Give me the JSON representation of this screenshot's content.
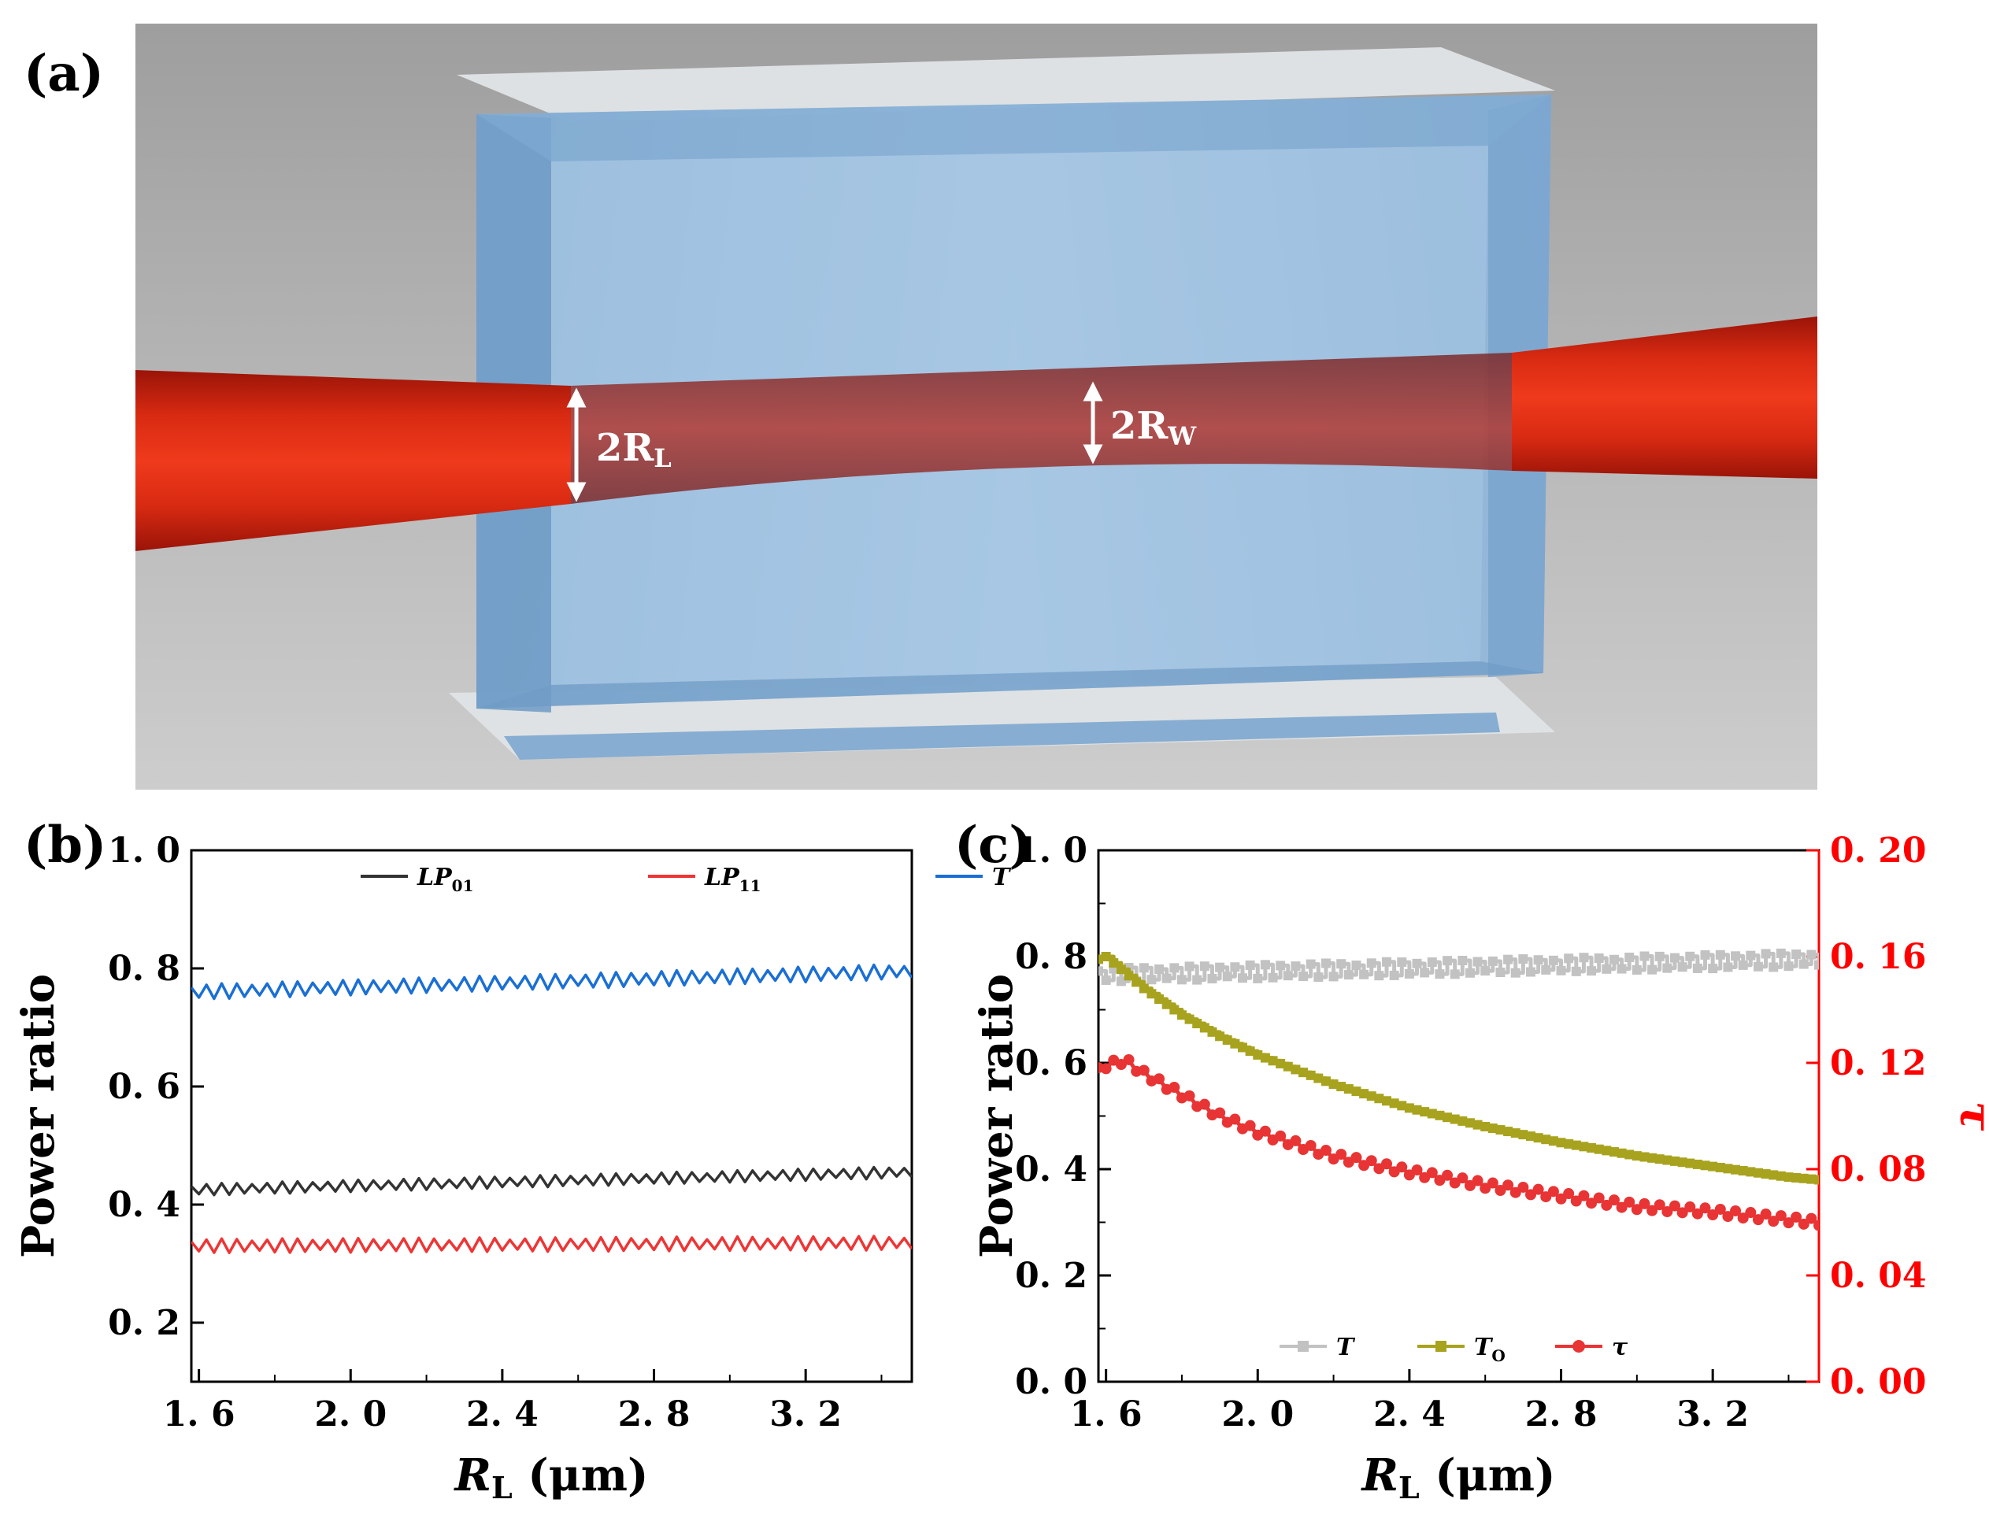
{
  "panel_a": {
    "label": "(a)",
    "dim_left": {
      "main": "2R",
      "sub": "L"
    },
    "dim_waist": {
      "main": "2R",
      "sub": "W"
    }
  },
  "colors": {
    "black": "#333333",
    "red": "#ee3535",
    "blue": "#1a6fd4",
    "gray": "#c2c2c2",
    "olive": "#a8a31e",
    "tau_red": "#e83434",
    "axis_red": "#ff0000"
  },
  "chart_data": [
    {
      "id": "b",
      "panel_label": "(b)",
      "type": "line",
      "xlabel": {
        "main": "R",
        "sub": "L",
        "unit": " (μm)"
      },
      "ylabel": "Power ratio",
      "xlim": [
        1.58,
        3.48
      ],
      "ylim": [
        0.1,
        1.0
      ],
      "x_ticks": [
        1.6,
        2.0,
        2.4,
        2.8,
        3.2
      ],
      "x_tick_labels": [
        "1. 6",
        "2. 0",
        "2. 4",
        "2. 8",
        "3. 2"
      ],
      "y_ticks": [
        0.2,
        0.4,
        0.6,
        0.8,
        1.0
      ],
      "y_tick_labels": [
        "0. 2",
        "0. 4",
        "0. 6",
        "0. 8",
        "1. 0"
      ],
      "legend": [
        {
          "main": "LP",
          "sub": "01",
          "color": "#333333"
        },
        {
          "main": "LP",
          "sub": "11",
          "color": "#ee3535"
        },
        {
          "main": "T",
          "sub": "",
          "color": "#1a6fd4"
        }
      ],
      "series": [
        {
          "name": "LP01",
          "color": "#333333",
          "x_start": 1.58,
          "x_end": 3.48,
          "step": 0.02,
          "base_start": 0.425,
          "base_end": 0.455,
          "ripple": 0.01
        },
        {
          "name": "LP11",
          "color": "#ee3535",
          "x_start": 1.58,
          "x_end": 3.48,
          "step": 0.02,
          "base_start": 0.33,
          "base_end": 0.335,
          "ripple": 0.012
        },
        {
          "name": "T",
          "color": "#1a6fd4",
          "x_start": 1.58,
          "x_end": 3.48,
          "step": 0.02,
          "base_start": 0.76,
          "base_end": 0.795,
          "ripple": 0.013
        }
      ]
    },
    {
      "id": "c",
      "panel_label": "(c)",
      "type": "line",
      "xlabel": {
        "main": "R",
        "sub": "L",
        "unit": " (μm)"
      },
      "ylabel": "Power ratio",
      "y2label": "τ",
      "xlim": [
        1.58,
        3.48
      ],
      "ylim": [
        0.0,
        1.0
      ],
      "y2lim": [
        0.0,
        0.2
      ],
      "x_ticks": [
        1.6,
        2.0,
        2.4,
        2.8,
        3.2
      ],
      "x_tick_labels": [
        "1. 6",
        "2. 0",
        "2. 4",
        "2. 8",
        "3. 2"
      ],
      "y_ticks": [
        0.0,
        0.2,
        0.4,
        0.6,
        0.8,
        1.0
      ],
      "y_tick_labels": [
        "0. 0",
        "0. 2",
        "0. 4",
        "0. 6",
        "0. 8",
        "1. 0"
      ],
      "y2_ticks": [
        0.0,
        0.04,
        0.08,
        0.12,
        0.16,
        0.2
      ],
      "y2_tick_labels": [
        "0. 00",
        "0. 04",
        "0. 08",
        "0. 12",
        "0. 16",
        "0. 20"
      ],
      "legend": [
        {
          "main": "T",
          "sub": "",
          "color": "#c2c2c2",
          "marker": "square"
        },
        {
          "main": "T",
          "sub": "O",
          "color": "#a8a31e",
          "marker": "square"
        },
        {
          "main": "τ",
          "sub": "",
          "color": "#e83434",
          "marker": "circle"
        }
      ],
      "series": [
        {
          "name": "T",
          "axis": "left",
          "color": "#c2c2c2",
          "marker": "square",
          "step_style": true,
          "x_start": 1.58,
          "x_end": 3.48,
          "step": 0.02,
          "base_start": 0.765,
          "base_end": 0.795,
          "ripple": 0.013
        },
        {
          "name": "TO",
          "axis": "left",
          "color": "#a8a31e",
          "marker": "square",
          "step_style": true,
          "x": [
            1.58,
            1.6,
            1.7,
            1.8,
            1.9,
            2.0,
            2.2,
            2.4,
            2.6,
            2.8,
            3.0,
            3.2,
            3.4,
            3.48
          ],
          "y": [
            0.795,
            0.8,
            0.74,
            0.69,
            0.65,
            0.615,
            0.56,
            0.515,
            0.48,
            0.45,
            0.425,
            0.405,
            0.385,
            0.38
          ]
        },
        {
          "name": "tau",
          "axis": "right",
          "color": "#e83434",
          "marker": "circle",
          "step_style": false,
          "ripple": 0.0012,
          "x": [
            1.58,
            1.6,
            1.65,
            1.7,
            1.8,
            1.9,
            2.0,
            2.2,
            2.4,
            2.6,
            2.8,
            3.0,
            3.2,
            3.4,
            3.48
          ],
          "y": [
            0.117,
            0.119,
            0.121,
            0.116,
            0.108,
            0.1,
            0.094,
            0.085,
            0.079,
            0.074,
            0.07,
            0.066,
            0.064,
            0.061,
            0.06
          ]
        }
      ]
    }
  ]
}
